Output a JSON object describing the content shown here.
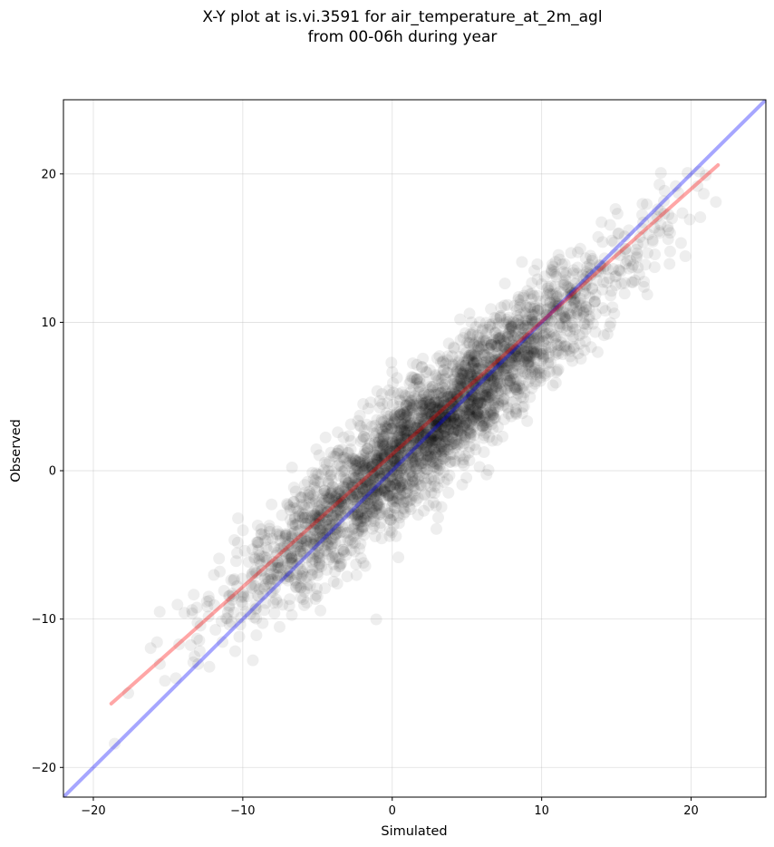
{
  "title": {
    "line1": "X-Y plot at is.vi.3591 for air_temperature_at_2m_agl",
    "line2": "from 00-06h during year"
  },
  "chart_data": {
    "type": "scatter",
    "xlabel": "Simulated",
    "ylabel": "Observed",
    "xlim": [
      -22,
      25
    ],
    "ylim": [
      -22,
      25
    ],
    "xticks": [
      -20,
      -10,
      0,
      10,
      20
    ],
    "yticks": [
      -20,
      -10,
      0,
      10,
      20
    ],
    "xtick_labels": [
      "−20",
      "−10",
      "0",
      "10",
      "20"
    ],
    "ytick_labels": [
      "−20",
      "−10",
      "0",
      "10",
      "20"
    ],
    "grid": true,
    "reference_lines": [
      {
        "color": "#0000ff",
        "description": "1:1",
        "x": [
          -22,
          25
        ],
        "y": [
          -22,
          25
        ]
      },
      {
        "color": "#ff0000",
        "description": "regression fit",
        "x": [
          -18.8,
          21.8
        ],
        "y": [
          -15.7,
          20.6
        ]
      }
    ],
    "scatter": {
      "color": "#000000",
      "approx_relation": "y ≈ 0.87*x + 0.6",
      "x_range": [
        -19,
        22
      ],
      "density_center": [
        2,
        2
      ]
    }
  }
}
